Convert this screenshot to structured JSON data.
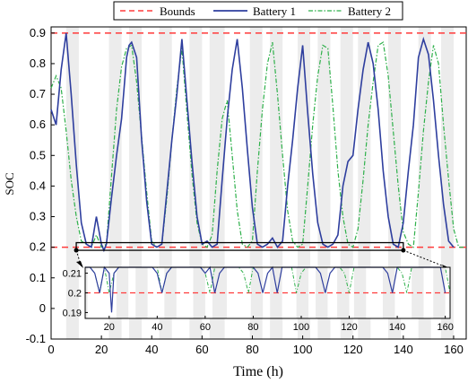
{
  "chart_data": {
    "type": "line",
    "xlabel": "Time (h)",
    "ylabel": "SOC",
    "xlim": [
      0,
      165
    ],
    "ylim": [
      -0.1,
      0.92
    ],
    "x_ticks": [
      0,
      20,
      40,
      60,
      80,
      100,
      120,
      140,
      160
    ],
    "y_ticks": [
      -0.1,
      0,
      0.1,
      0.2,
      0.3,
      0.4,
      0.5,
      0.6,
      0.7,
      0.8,
      0.9
    ],
    "grid": false,
    "legend_position": "top-center",
    "bounds": [
      0.2,
      0.9
    ],
    "bounds_label": "Bounds",
    "colors": {
      "bounds": "#ff3b3b",
      "battery1": "#2e3e9e",
      "battery2": "#2eb04a",
      "shade": "#ececec"
    },
    "shaded_intervals": [
      [
        6,
        11
      ],
      [
        23,
        28
      ],
      [
        31,
        36
      ],
      [
        43,
        48
      ],
      [
        55,
        60
      ],
      [
        63,
        69
      ],
      [
        79,
        84
      ],
      [
        87,
        92
      ],
      [
        98,
        103
      ],
      [
        106,
        111
      ],
      [
        115,
        120
      ],
      [
        122,
        127
      ],
      [
        134,
        139
      ],
      [
        146,
        151
      ],
      [
        155,
        160
      ]
    ],
    "series": [
      {
        "name": "Battery 1",
        "style": "solid",
        "x": [
          0,
          2,
          4,
          6,
          8,
          10,
          12,
          14,
          16,
          18,
          20,
          21,
          22,
          24,
          26,
          28,
          30,
          31,
          32,
          34,
          36,
          38,
          40,
          42,
          44,
          46,
          48,
          50,
          52,
          54,
          56,
          58,
          60,
          62,
          64,
          66,
          68,
          70,
          72,
          74,
          76,
          78,
          80,
          82,
          84,
          86,
          88,
          90,
          92,
          94,
          96,
          98,
          100,
          102,
          104,
          106,
          108,
          110,
          112,
          114,
          116,
          118,
          120,
          122,
          124,
          126,
          128,
          130,
          132,
          134,
          136,
          138,
          140,
          142,
          144,
          146,
          148,
          150,
          152,
          154,
          156,
          158,
          160
        ],
        "y": [
          0.65,
          0.6,
          0.78,
          0.9,
          0.7,
          0.47,
          0.28,
          0.21,
          0.2,
          0.3,
          0.21,
          0.19,
          0.21,
          0.36,
          0.5,
          0.62,
          0.82,
          0.86,
          0.87,
          0.82,
          0.55,
          0.35,
          0.21,
          0.2,
          0.21,
          0.38,
          0.55,
          0.7,
          0.88,
          0.68,
          0.48,
          0.3,
          0.21,
          0.22,
          0.2,
          0.21,
          0.42,
          0.62,
          0.78,
          0.88,
          0.72,
          0.52,
          0.33,
          0.21,
          0.2,
          0.21,
          0.23,
          0.2,
          0.22,
          0.4,
          0.55,
          0.72,
          0.86,
          0.64,
          0.44,
          0.28,
          0.21,
          0.2,
          0.21,
          0.24,
          0.4,
          0.48,
          0.5,
          0.65,
          0.78,
          0.87,
          0.8,
          0.65,
          0.45,
          0.3,
          0.21,
          0.2,
          0.28,
          0.45,
          0.6,
          0.82,
          0.88,
          0.83,
          0.68,
          0.5,
          0.34,
          0.22,
          0.2
        ]
      },
      {
        "name": "Battery 2",
        "style": "dashdot",
        "x": [
          0,
          2,
          4,
          6,
          8,
          10,
          12,
          14,
          16,
          18,
          20,
          22,
          24,
          26,
          28,
          30,
          32,
          34,
          36,
          38,
          40,
          42,
          44,
          46,
          48,
          50,
          52,
          54,
          56,
          58,
          60,
          62,
          64,
          66,
          68,
          70,
          72,
          74,
          76,
          78,
          80,
          82,
          84,
          86,
          88,
          90,
          92,
          94,
          96,
          98,
          100,
          102,
          104,
          106,
          108,
          110,
          112,
          114,
          116,
          118,
          120,
          122,
          124,
          126,
          128,
          130,
          132,
          134,
          136,
          138,
          140,
          142,
          144,
          146,
          148,
          150,
          152,
          154,
          156,
          158,
          160,
          162,
          164
        ],
        "y": [
          0.72,
          0.76,
          0.72,
          0.58,
          0.42,
          0.3,
          0.22,
          0.21,
          0.2,
          0.24,
          0.2,
          0.21,
          0.43,
          0.65,
          0.79,
          0.85,
          0.86,
          0.74,
          0.56,
          0.38,
          0.22,
          0.2,
          0.21,
          0.36,
          0.55,
          0.72,
          0.85,
          0.64,
          0.44,
          0.28,
          0.21,
          0.2,
          0.24,
          0.45,
          0.62,
          0.68,
          0.5,
          0.32,
          0.21,
          0.2,
          0.22,
          0.45,
          0.65,
          0.8,
          0.87,
          0.7,
          0.5,
          0.32,
          0.22,
          0.2,
          0.21,
          0.4,
          0.6,
          0.76,
          0.86,
          0.85,
          0.66,
          0.45,
          0.3,
          0.21,
          0.2,
          0.26,
          0.42,
          0.6,
          0.74,
          0.86,
          0.87,
          0.76,
          0.58,
          0.4,
          0.25,
          0.21,
          0.2,
          0.38,
          0.58,
          0.74,
          0.86,
          0.8,
          0.6,
          0.42,
          0.26,
          0.2,
          0.2
        ]
      }
    ],
    "inset": {
      "xlim": [
        10,
        162
      ],
      "ylim": [
        0.187,
        0.213
      ],
      "x_ticks": [
        20,
        40,
        60,
        80,
        100,
        120,
        140,
        160
      ],
      "y_ticks": [
        0.19,
        0.2,
        0.21
      ],
      "zoom_window": {
        "x": [
          10,
          140
        ],
        "y": [
          0.19,
          0.215
        ]
      }
    }
  }
}
